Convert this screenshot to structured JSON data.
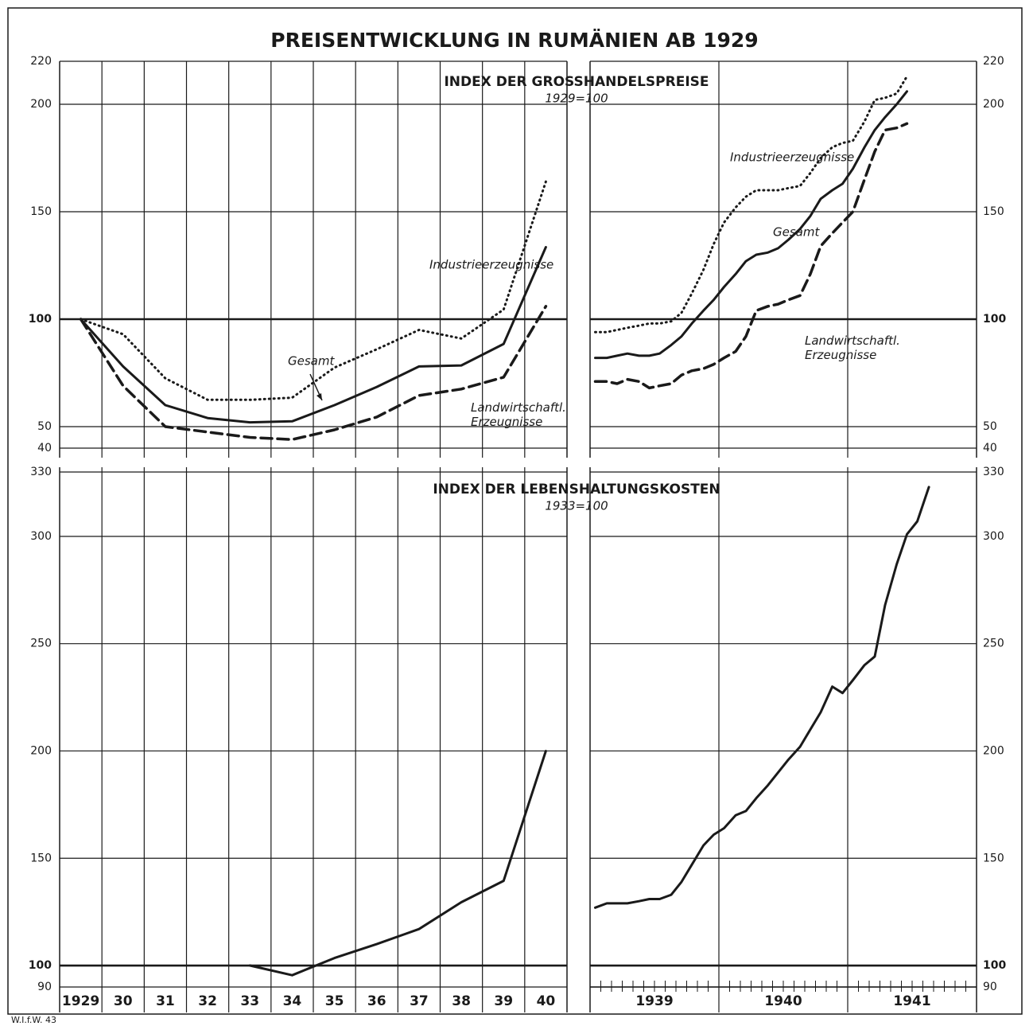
{
  "title": "PREISENTWICKLUNG IN RUMÄNIEN AB 1929",
  "source": "W.I.f.W. 43",
  "chart_data": [
    {
      "type": "line",
      "yaxis_side": "left",
      "categories": [
        "1929",
        "30",
        "31",
        "32",
        "33",
        "34",
        "35",
        "36",
        "37",
        "38",
        "39",
        "40"
      ],
      "panels": [
        {
          "title": "INDEX DER GROSSHANDELSPREISE",
          "subtitle": "1929=100",
          "ylim": [
            40,
            220
          ],
          "yticks": [
            40,
            50,
            100,
            150,
            200,
            220
          ],
          "baseline": 100,
          "grid": true,
          "series": [
            {
              "name": "Industrieerzeugnisse",
              "color": "#1a1a1a",
              "style": "dotted",
              "values": [
                100,
                93,
                72.5,
                62.5,
                62.5,
                63.5,
                77.5,
                86,
                95,
                91,
                104.5,
                164
              ]
            },
            {
              "name": "Gesamt",
              "color": "#1a1a1a",
              "style": "solid",
              "values": [
                100,
                78,
                60,
                54,
                52,
                52.5,
                60,
                68.5,
                78,
                78.5,
                88.5,
                133.5
              ]
            },
            {
              "name": "Landwirtschaftl. Erzeugnisse",
              "color": "#1a1a1a",
              "style": "dashed",
              "values": [
                100,
                69,
                50,
                47.5,
                45,
                44,
                48.5,
                54.5,
                64.5,
                67.5,
                73,
                106
              ]
            }
          ]
        },
        {
          "title": "INDEX DER LEBENSHALTUNGSKOSTEN",
          "subtitle": "1933=100",
          "ylim": [
            90,
            330
          ],
          "yticks": [
            90,
            100,
            150,
            200,
            250,
            300,
            330
          ],
          "baseline": 100,
          "grid": true,
          "series": [
            {
              "color": "#1a1a1a",
              "style": "solid",
              "values": [
                null,
                null,
                null,
                null,
                100,
                95.5,
                103.5,
                110,
                117,
                129.5,
                139.5,
                200
              ]
            }
          ]
        }
      ]
    },
    {
      "type": "line",
      "yaxis_side": "right",
      "x": [
        1939.04,
        1939.13,
        1939.21,
        1939.29,
        1939.38,
        1939.46,
        1939.54,
        1939.63,
        1939.71,
        1939.79,
        1939.88,
        1939.96,
        1940.04,
        1940.13,
        1940.21,
        1940.29,
        1940.38,
        1940.46,
        1940.54,
        1940.63,
        1940.71,
        1940.79,
        1940.88,
        1940.96,
        1941.04,
        1941.13,
        1941.21,
        1941.29,
        1941.38,
        1941.46,
        1941.54,
        1941.63
      ],
      "xlim": [
        1939,
        1942
      ],
      "categories": [
        "1939",
        "1940",
        "1941"
      ],
      "panels": [
        {
          "ylim": [
            40,
            220
          ],
          "yticks": [
            40,
            50,
            100,
            150,
            200,
            220
          ],
          "baseline": 100,
          "grid": true,
          "series": [
            {
              "name": "Industrieerzeugnisse",
              "color": "#1a1a1a",
              "style": "dotted",
              "values": [
                94,
                94,
                95,
                96,
                97,
                98,
                98,
                99,
                103,
                112,
                123,
                135,
                145,
                152,
                157,
                160,
                160,
                160,
                161,
                162,
                168,
                175,
                180,
                182,
                183,
                192,
                202,
                203,
                205,
                213,
                null,
                null
              ]
            },
            {
              "name": "Gesamt",
              "color": "#1a1a1a",
              "style": "solid",
              "values": [
                82,
                82,
                83,
                84,
                83,
                83,
                84,
                88,
                92,
                98,
                104,
                109,
                115,
                121,
                127,
                130,
                131,
                133,
                137,
                142,
                148,
                156,
                160,
                163,
                170,
                180,
                188,
                194,
                200,
                206,
                null,
                null
              ]
            },
            {
              "name": "Landwirtschaftl. Erzeugnisse",
              "color": "#1a1a1a",
              "style": "dashed",
              "values": [
                71,
                71,
                70,
                72,
                71,
                68,
                69,
                70,
                74,
                76,
                77,
                79,
                82,
                85,
                92,
                104,
                106,
                107,
                109,
                111,
                121,
                134,
                140,
                145,
                150,
                165,
                178,
                188,
                189,
                191,
                null,
                null
              ]
            }
          ]
        },
        {
          "ylim": [
            90,
            330
          ],
          "yticks": [
            90,
            100,
            150,
            200,
            250,
            300,
            330
          ],
          "baseline": 100,
          "grid": true,
          "series": [
            {
              "color": "#1a1a1a",
              "style": "solid",
              "values": [
                127,
                129,
                129,
                129,
                130,
                131,
                131,
                133,
                139,
                147,
                156,
                161,
                164,
                170,
                172,
                178,
                184,
                190,
                196,
                202,
                210,
                218,
                230,
                227,
                233,
                240,
                244,
                268,
                287,
                301,
                307,
                323
              ]
            }
          ]
        }
      ]
    }
  ]
}
